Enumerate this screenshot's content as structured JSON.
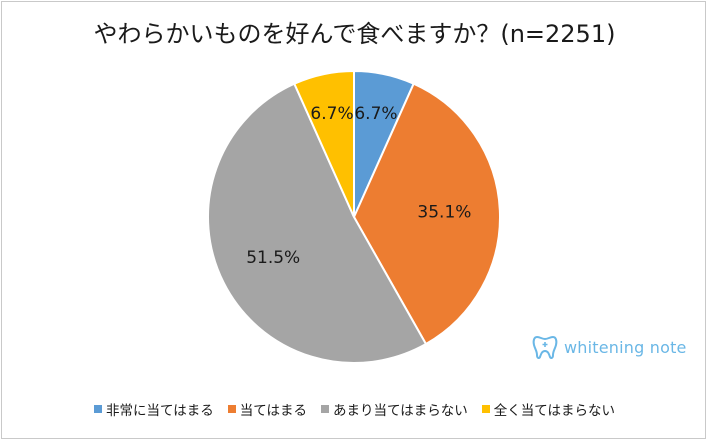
{
  "chart_data": {
    "type": "pie",
    "title": "やわらかいものを好んで食べますか？(n=2251)",
    "start_angle": 0,
    "direction": "clockwise",
    "slices": [
      {
        "label": "非常に当てはまる",
        "value": 6.7,
        "display": "6.7%",
        "color": "#5b9bd5"
      },
      {
        "label": "当てはまる",
        "value": 35.1,
        "display": "35.1%",
        "color": "#ed7d31"
      },
      {
        "label": "あまり当てはまらない",
        "value": 51.5,
        "display": "51.5%",
        "color": "#a5a5a5"
      },
      {
        "label": "全く当てはまらない",
        "value": 6.7,
        "display": "6.7%",
        "color": "#ffc000"
      }
    ],
    "legend_position": "bottom"
  },
  "logo": {
    "text": "whitening note",
    "color": "#6ab7e6"
  }
}
